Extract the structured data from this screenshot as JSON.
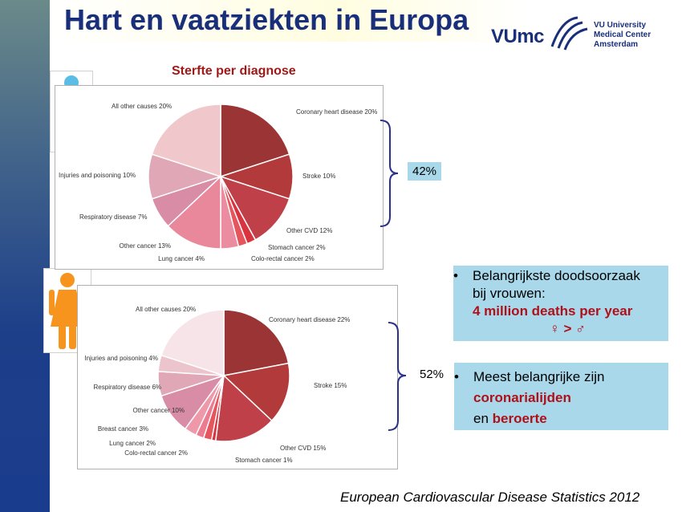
{
  "title": "Hart en vaatziekten in Europa",
  "subtitle": "Sterfte per diagnose",
  "logo": {
    "wordmark": "VUmc",
    "lines": [
      "VU University",
      "Medical Center",
      "Amsterdam"
    ]
  },
  "chart_data": [
    {
      "type": "pie",
      "categories": [
        "Coronary heart disease",
        "Stroke",
        "Other CVD",
        "Stomach cancer",
        "Colo-rectal cancer",
        "Lung cancer",
        "Other cancer",
        "Respiratory disease",
        "Injuries and poisoning",
        "All other causes"
      ],
      "labels": [
        "Coronary heart disease 20%",
        "Stroke 10%",
        "Other CVD 12%",
        "Stomach cancer 2%",
        "Colo-rectal cancer 2%",
        "Lung cancer 4%",
        "Other cancer 13%",
        "Respiratory disease 7%",
        "Injuries and poisoning 10%",
        "All other causes 20%"
      ],
      "values": [
        20,
        10,
        12,
        2,
        2,
        4,
        13,
        7,
        10,
        20
      ],
      "colors": [
        "#9b3535",
        "#b33a3a",
        "#c0404a",
        "#d9333f",
        "#e6545c",
        "#ec8ca0",
        "#e8889a",
        "#d88ca6",
        "#e0a8b6",
        "#f0c8cc"
      ]
    },
    {
      "type": "pie",
      "categories": [
        "Coronary heart disease",
        "Stroke",
        "Other CVD",
        "Stomach cancer",
        "Colo-rectal cancer",
        "Lung cancer",
        "Breast cancer",
        "Other cancer",
        "Respiratory disease",
        "Injuries and poisoning",
        "All other causes"
      ],
      "labels": [
        "Coronary heart disease 22%",
        "Stroke 15%",
        "Other CVD 15%",
        "Stomach cancer 1%",
        "Colo-rectal cancer 2%",
        "Lung cancer 2%",
        "Breast cancer 3%",
        "Other cancer 10%",
        "Respiratory disease 6%",
        "Injuries and poisoning 4%",
        "All other causes 20%"
      ],
      "values": [
        22,
        15,
        15,
        1,
        2,
        2,
        3,
        10,
        6,
        4,
        20
      ],
      "colors": [
        "#9b3535",
        "#b33a3a",
        "#c0404a",
        "#d9333f",
        "#e6545c",
        "#ec7a90",
        "#ef98aa",
        "#d88ca6",
        "#e0a8b6",
        "#ecc4cc",
        "#f6e4e8"
      ]
    }
  ],
  "men_pct": "42%",
  "women_pct": "52%",
  "bullet1": {
    "line1": "Belangrijkste doodsoorzaak",
    "line2": "bij vrouwen:",
    "line3": "4 million deaths per year",
    "line4": "♀ > ♂"
  },
  "bullet2": {
    "line1": "Meest belangrijke zijn",
    "line2": "coronarialijden",
    "line3_prefix": "en ",
    "line3_red": "beroerte"
  },
  "footer": "European Cardiovascular Disease Statistics 2012"
}
